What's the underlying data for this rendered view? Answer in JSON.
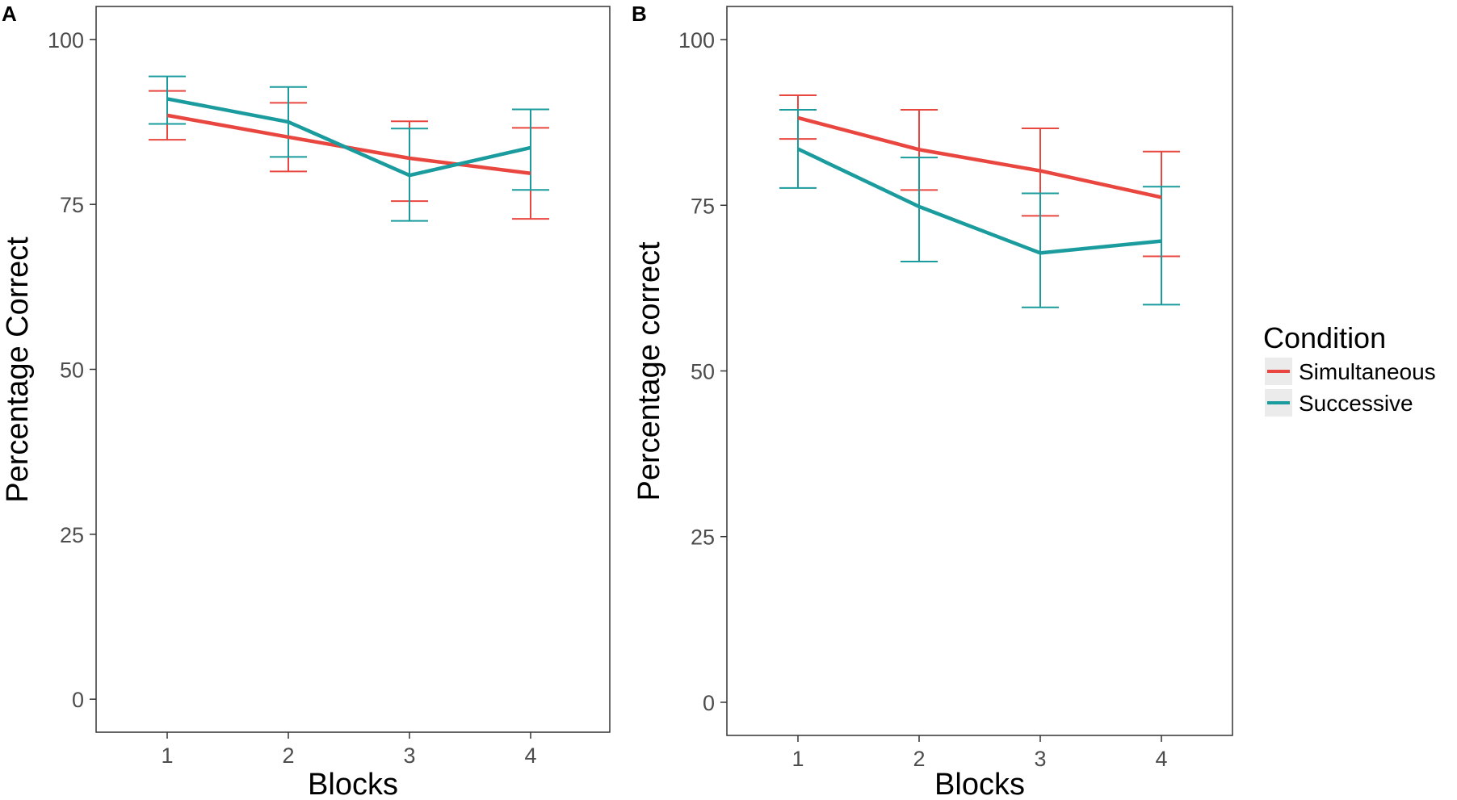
{
  "chart_data": [
    {
      "type": "line",
      "panel_label": "A",
      "xlabel": "Blocks",
      "ylabel": "Percentage Correct",
      "x": [
        1,
        2,
        3,
        4
      ],
      "xticks": [
        "1",
        "2",
        "3",
        "4"
      ],
      "ylim": [
        -5,
        105
      ],
      "yticks": [
        0,
        25,
        50,
        75,
        100
      ],
      "ytick_labels": [
        "0",
        "25",
        "50",
        "75",
        "100"
      ],
      "grid": false,
      "series": [
        {
          "name": "Simultaneous",
          "color": "#e8463f",
          "values": [
            88.5,
            85.2,
            82.0,
            79.7
          ],
          "lower": [
            84.8,
            80.0,
            75.5,
            72.8
          ],
          "upper": [
            92.2,
            90.4,
            87.6,
            86.6
          ]
        },
        {
          "name": "Successive",
          "color": "#1a9b9e",
          "values": [
            91.0,
            87.5,
            79.4,
            83.6
          ],
          "lower": [
            87.2,
            82.2,
            72.5,
            77.2
          ],
          "upper": [
            94.4,
            92.8,
            86.5,
            89.4
          ]
        }
      ]
    },
    {
      "type": "line",
      "panel_label": "B",
      "xlabel": "Blocks",
      "ylabel": "Percentage correct",
      "x": [
        1,
        2,
        3,
        4
      ],
      "xticks": [
        "1",
        "2",
        "3",
        "4"
      ],
      "ylim": [
        -5,
        105
      ],
      "yticks": [
        0,
        25,
        50,
        75,
        100
      ],
      "ytick_labels": [
        "0",
        "25",
        "50",
        "75",
        "100"
      ],
      "grid": false,
      "series": [
        {
          "name": "Simultaneous",
          "color": "#e8463f",
          "values": [
            88.2,
            83.4,
            80.2,
            76.2
          ],
          "lower": [
            85.0,
            77.3,
            73.4,
            67.3
          ],
          "upper": [
            91.6,
            89.4,
            86.6,
            83.1
          ]
        },
        {
          "name": "Successive",
          "color": "#1a9b9e",
          "values": [
            83.5,
            74.8,
            67.8,
            69.6
          ],
          "lower": [
            77.6,
            66.5,
            59.6,
            60.0
          ],
          "upper": [
            89.4,
            82.2,
            76.8,
            77.8
          ]
        }
      ]
    }
  ],
  "legend": {
    "title": "Condition",
    "placement": "right",
    "entries": [
      {
        "label": "Simultaneous",
        "color": "#e8463f"
      },
      {
        "label": "Successive",
        "color": "#1a9b9e"
      }
    ]
  }
}
